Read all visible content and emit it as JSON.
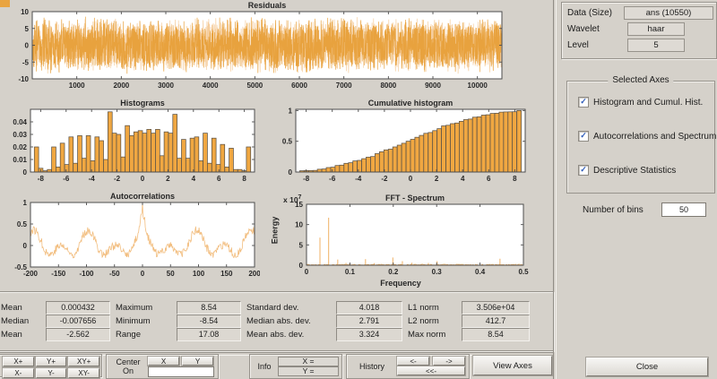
{
  "right_panel": {
    "fields": [
      {
        "label": "Data  (Size)",
        "value": "ans  (10550)"
      },
      {
        "label": "Wavelet",
        "value": "haar"
      },
      {
        "label": "Level",
        "value": "5"
      }
    ],
    "selected_axes": {
      "title": "Selected Axes",
      "check_glyph": "✓",
      "checkboxes": [
        {
          "label": "Histogram and Cumul. Hist.",
          "checked": true
        },
        {
          "label": "Autocorrelations and Spectrum",
          "checked": true
        },
        {
          "label": "Descriptive Statistics",
          "checked": true
        }
      ]
    },
    "bins": {
      "label": "Number of bins",
      "value": "50"
    },
    "close_label": "Close"
  },
  "stats": {
    "items": [
      {
        "label": "Mean",
        "value": "0.000432"
      },
      {
        "label": "Maximum",
        "value": "8.54"
      },
      {
        "label": "Standard dev.",
        "value": "4.018"
      },
      {
        "label": "L1 norm",
        "value": "3.506e+04"
      },
      {
        "label": "Median",
        "value": "-0.007656"
      },
      {
        "label": "Minimum",
        "value": "-8.54"
      },
      {
        "label": "Median abs. dev.",
        "value": "2.791"
      },
      {
        "label": "L2 norm",
        "value": "412.7"
      },
      {
        "label": "Mean",
        "value": "-2.562"
      },
      {
        "label": "Range",
        "value": "17.08"
      },
      {
        "label": "Mean abs. dev.",
        "value": "3.324"
      },
      {
        "label": "Max norm",
        "value": "8.54"
      }
    ]
  },
  "toolbar": {
    "zoom_buttons": [
      "X+",
      "Y+",
      "XY+",
      "X-",
      "Y-",
      "XY-"
    ],
    "center": {
      "label_line1": "Center",
      "label_line2": "On",
      "x": "X",
      "y": "Y"
    },
    "info": {
      "label": "Info",
      "x": "X =",
      "y": "Y ="
    },
    "history": {
      "label": "History",
      "back": "<-",
      "fwd": "->",
      "all": "<<-"
    },
    "view_axes": "View Axes"
  },
  "chart_data": [
    {
      "id": "residuals",
      "type": "noise-line",
      "title": "Residuals",
      "xlim": [
        0,
        10550
      ],
      "ylim": [
        -10,
        10
      ],
      "xticks": [
        1000,
        2000,
        3000,
        4000,
        5000,
        6000,
        7000,
        8000,
        9000,
        10000
      ],
      "xtick_labels": [
        "1000",
        "2000",
        "3000",
        "4000",
        "5000",
        "6000",
        "7000",
        "8000",
        "9000",
        "10000"
      ],
      "yticks": [
        -10,
        -5,
        0,
        5,
        10
      ],
      "ytick_labels": [
        "-10",
        "-5",
        "0",
        "5",
        "10"
      ],
      "amplitude": 8.6,
      "n_points": 2800,
      "color": "#e8a23e",
      "color2": "#f5cd9d"
    },
    {
      "id": "histogram",
      "type": "bar",
      "title": "Histograms",
      "xlim": [
        -8.8,
        8.8
      ],
      "ylim": [
        0,
        0.05
      ],
      "xticks": [
        -8,
        -6,
        -4,
        -2,
        0,
        2,
        4,
        6,
        8
      ],
      "xtick_labels": [
        "-8",
        "-6",
        "-4",
        "-2",
        "0",
        "2",
        "4",
        "6",
        "8"
      ],
      "yticks": [
        0,
        0.01,
        0.02,
        0.03,
        0.04
      ],
      "ytick_labels": [
        "0",
        "0.01",
        "0.02",
        "0.03",
        "0.04"
      ],
      "bin_start": -8.5,
      "bin_width": 0.34,
      "values": [
        0.02,
        0.003,
        0.001,
        0.002,
        0.02,
        0.004,
        0.023,
        0.006,
        0.028,
        0.007,
        0.029,
        0.011,
        0.029,
        0.009,
        0.028,
        0.025,
        0.01,
        0.048,
        0.031,
        0.03,
        0.012,
        0.037,
        0.029,
        0.032,
        0.033,
        0.031,
        0.034,
        0.031,
        0.034,
        0.013,
        0.032,
        0.031,
        0.046,
        0.011,
        0.026,
        0.011,
        0.027,
        0.028,
        0.009,
        0.031,
        0.007,
        0.027,
        0.006,
        0.022,
        0.004,
        0.019,
        0.002,
        0.002,
        0.001,
        0.02
      ],
      "fill": "#f0a741",
      "edge": "#5c5347"
    },
    {
      "id": "cumulative",
      "type": "bar",
      "cumulative": true,
      "title": "Cumulative histogram",
      "xlim": [
        -8.8,
        8.8
      ],
      "ylim": [
        0,
        1.02
      ],
      "xticks": [
        -8,
        -6,
        -4,
        -2,
        0,
        2,
        4,
        6,
        8
      ],
      "xtick_labels": [
        "-8",
        "-6",
        "-4",
        "-2",
        "0",
        "2",
        "4",
        "6",
        "8"
      ],
      "yticks": [
        0,
        0.5,
        1
      ],
      "ytick_labels": [
        "0",
        "0.5",
        "1"
      ],
      "bin_start": -8.5,
      "bin_width": 0.34,
      "values": [
        0.02,
        0.003,
        0.001,
        0.002,
        0.02,
        0.004,
        0.023,
        0.006,
        0.028,
        0.007,
        0.029,
        0.011,
        0.029,
        0.009,
        0.028,
        0.025,
        0.01,
        0.048,
        0.031,
        0.03,
        0.012,
        0.037,
        0.029,
        0.032,
        0.033,
        0.031,
        0.034,
        0.031,
        0.034,
        0.013,
        0.032,
        0.031,
        0.046,
        0.011,
        0.026,
        0.011,
        0.027,
        0.028,
        0.009,
        0.031,
        0.007,
        0.027,
        0.006,
        0.022,
        0.004,
        0.019,
        0.002,
        0.002,
        0.001,
        0.02
      ],
      "fill": "#f0a741",
      "edge": "#5c5347"
    },
    {
      "id": "autocorr",
      "type": "acf-line",
      "title": "Autocorrelations",
      "xlim": [
        -200,
        200
      ],
      "ylim": [
        -0.5,
        1
      ],
      "xticks": [
        -200,
        -150,
        -100,
        -50,
        0,
        50,
        100,
        150,
        200
      ],
      "xtick_labels": [
        "-200",
        "-150",
        "-100",
        "-50",
        "0",
        "50",
        "100",
        "150",
        "200"
      ],
      "yticks": [
        -0.5,
        0,
        0.5,
        1
      ],
      "ytick_labels": [
        "-0.5",
        "0",
        "0.5",
        "1"
      ],
      "period1": 48.5,
      "period2": 97,
      "osc_amp": 0.18,
      "noise_amp": 0.2,
      "color": "#f2bd7e"
    },
    {
      "id": "spectrum",
      "type": "stem",
      "title": "FFT - Spectrum",
      "xlabel": "Frequency",
      "ylabel": "Energy",
      "scale_base": "x 10",
      "scale_exp": "7",
      "xlim": [
        0,
        0.5
      ],
      "ylim": [
        0,
        15
      ],
      "xticks": [
        0,
        0.1,
        0.2,
        0.3,
        0.4,
        0.5
      ],
      "xtick_labels": [
        "0",
        "0.1",
        "0.2",
        "0.3",
        "0.4",
        "0.5"
      ],
      "yticks": [
        0,
        5,
        10,
        15
      ],
      "ytick_labels": [
        "0",
        "5",
        "10",
        "15"
      ],
      "peaks": [
        [
          0.031,
          6.8
        ],
        [
          0.051,
          11.7
        ],
        [
          0.072,
          1.4
        ],
        [
          0.091,
          0.55
        ],
        [
          0.136,
          1.5
        ],
        [
          0.156,
          0.5
        ],
        [
          0.199,
          1.9
        ],
        [
          0.221,
          1.0
        ],
        [
          0.243,
          0.6
        ],
        [
          0.266,
          0.3
        ],
        [
          0.281,
          0.55
        ],
        [
          0.301,
          1.0
        ],
        [
          0.35,
          0.3
        ],
        [
          0.374,
          0.25
        ],
        [
          0.404,
          0.2
        ],
        [
          0.446,
          1.6
        ],
        [
          0.49,
          0.35
        ]
      ],
      "baseline_noise": 0.25,
      "color": "#f0b165"
    }
  ]
}
